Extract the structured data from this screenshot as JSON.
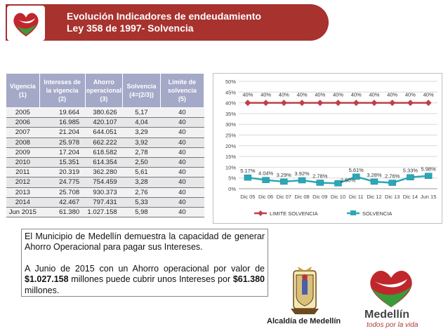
{
  "header": {
    "title_line1": "Evolución Indicadores de endeudamiento",
    "title_line2": "Ley 358 de 1997- Solvencia"
  },
  "table": {
    "headers": [
      {
        "label": "Vigencia",
        "sub": "(1)"
      },
      {
        "label": "Intereses de la vigencia",
        "sub": "(2)"
      },
      {
        "label": "Ahorro operacional",
        "sub": "(3)"
      },
      {
        "label": "Solvencia",
        "sub": "(4=(2/3))"
      },
      {
        "label": "Límite de solvencia",
        "sub": "(5)"
      }
    ],
    "rows": [
      [
        "2005",
        "19.664",
        "380.626",
        "5,17",
        "40"
      ],
      [
        "2006",
        "16.985",
        "420.107",
        "4,04",
        "40"
      ],
      [
        "2007",
        "21.204",
        "644.051",
        "3,29",
        "40"
      ],
      [
        "2008",
        "25.978",
        "662.222",
        "3,92",
        "40"
      ],
      [
        "2009",
        "17.204",
        "618.582",
        "2,78",
        "40"
      ],
      [
        "2010",
        "15.351",
        "614.354",
        "2,50",
        "40"
      ],
      [
        "2011",
        "20.319",
        "362.280",
        "5,61",
        "40"
      ],
      [
        "2012",
        "24.775",
        "754.459",
        "3,28",
        "40"
      ],
      [
        "2013",
        "25.708",
        "930.373",
        "2,76",
        "40"
      ],
      [
        "2014",
        "42.467",
        "797.431",
        "5,33",
        "40"
      ],
      [
        "Jun 2015",
        "61.380",
        "1.027.158",
        "5,98",
        "40"
      ]
    ]
  },
  "chart_data": {
    "type": "line",
    "categories": [
      "Dic 05",
      "Dic 06",
      "Dic 07",
      "Dic 08",
      "Dic 09",
      "Dic 10",
      "Dic 11",
      "Dic 12",
      "Dic 13",
      "Dic 14",
      "Jun 15"
    ],
    "series": [
      {
        "name": "LIMITE SOLVENCIA",
        "values": [
          40,
          40,
          40,
          40,
          40,
          40,
          40,
          40,
          40,
          40,
          40
        ],
        "labels": [
          "40%",
          "40%",
          "40%",
          "40%",
          "40%",
          "40%",
          "40%",
          "40%",
          "40%",
          "40%",
          "40%"
        ],
        "color": "#bf3f4a"
      },
      {
        "name": "SOLVENCIA",
        "values": [
          5.17,
          4.04,
          3.29,
          3.92,
          2.78,
          2.5,
          5.61,
          3.28,
          2.76,
          5.33,
          5.98
        ],
        "labels": [
          "5.17%",
          "4.04%",
          "3.29%",
          "3.92%",
          "2.78%",
          "2.50%",
          "5.61%",
          "3.28%",
          "2.76%",
          "5.33%",
          "5.98%"
        ],
        "color": "#2aa8b7"
      }
    ],
    "yticks": [
      "0%",
      "5%",
      "10%",
      "15%",
      "20%",
      "25%",
      "30%",
      "35%",
      "40%",
      "45%",
      "50%"
    ],
    "ylim": [
      0,
      50
    ],
    "legend_position": "bottom"
  },
  "body_text": {
    "p1": "El Municipio de Medellín demuestra la capacidad de generar Ahorro Operacional para pagar sus Intereses.",
    "p2_a": "A Junio de 2015 con un Ahorro operacional por valor de",
    "p2_b": "$1.027.158",
    "p2_c": " millones puede cubrir unos Intereses por ",
    "p2_d": "$61.380",
    "p2_e": " millones."
  },
  "logos": {
    "alcaldia": "Alcaldía de Medellín",
    "medellin": "Medellín",
    "slogan": "todos por la vida"
  }
}
